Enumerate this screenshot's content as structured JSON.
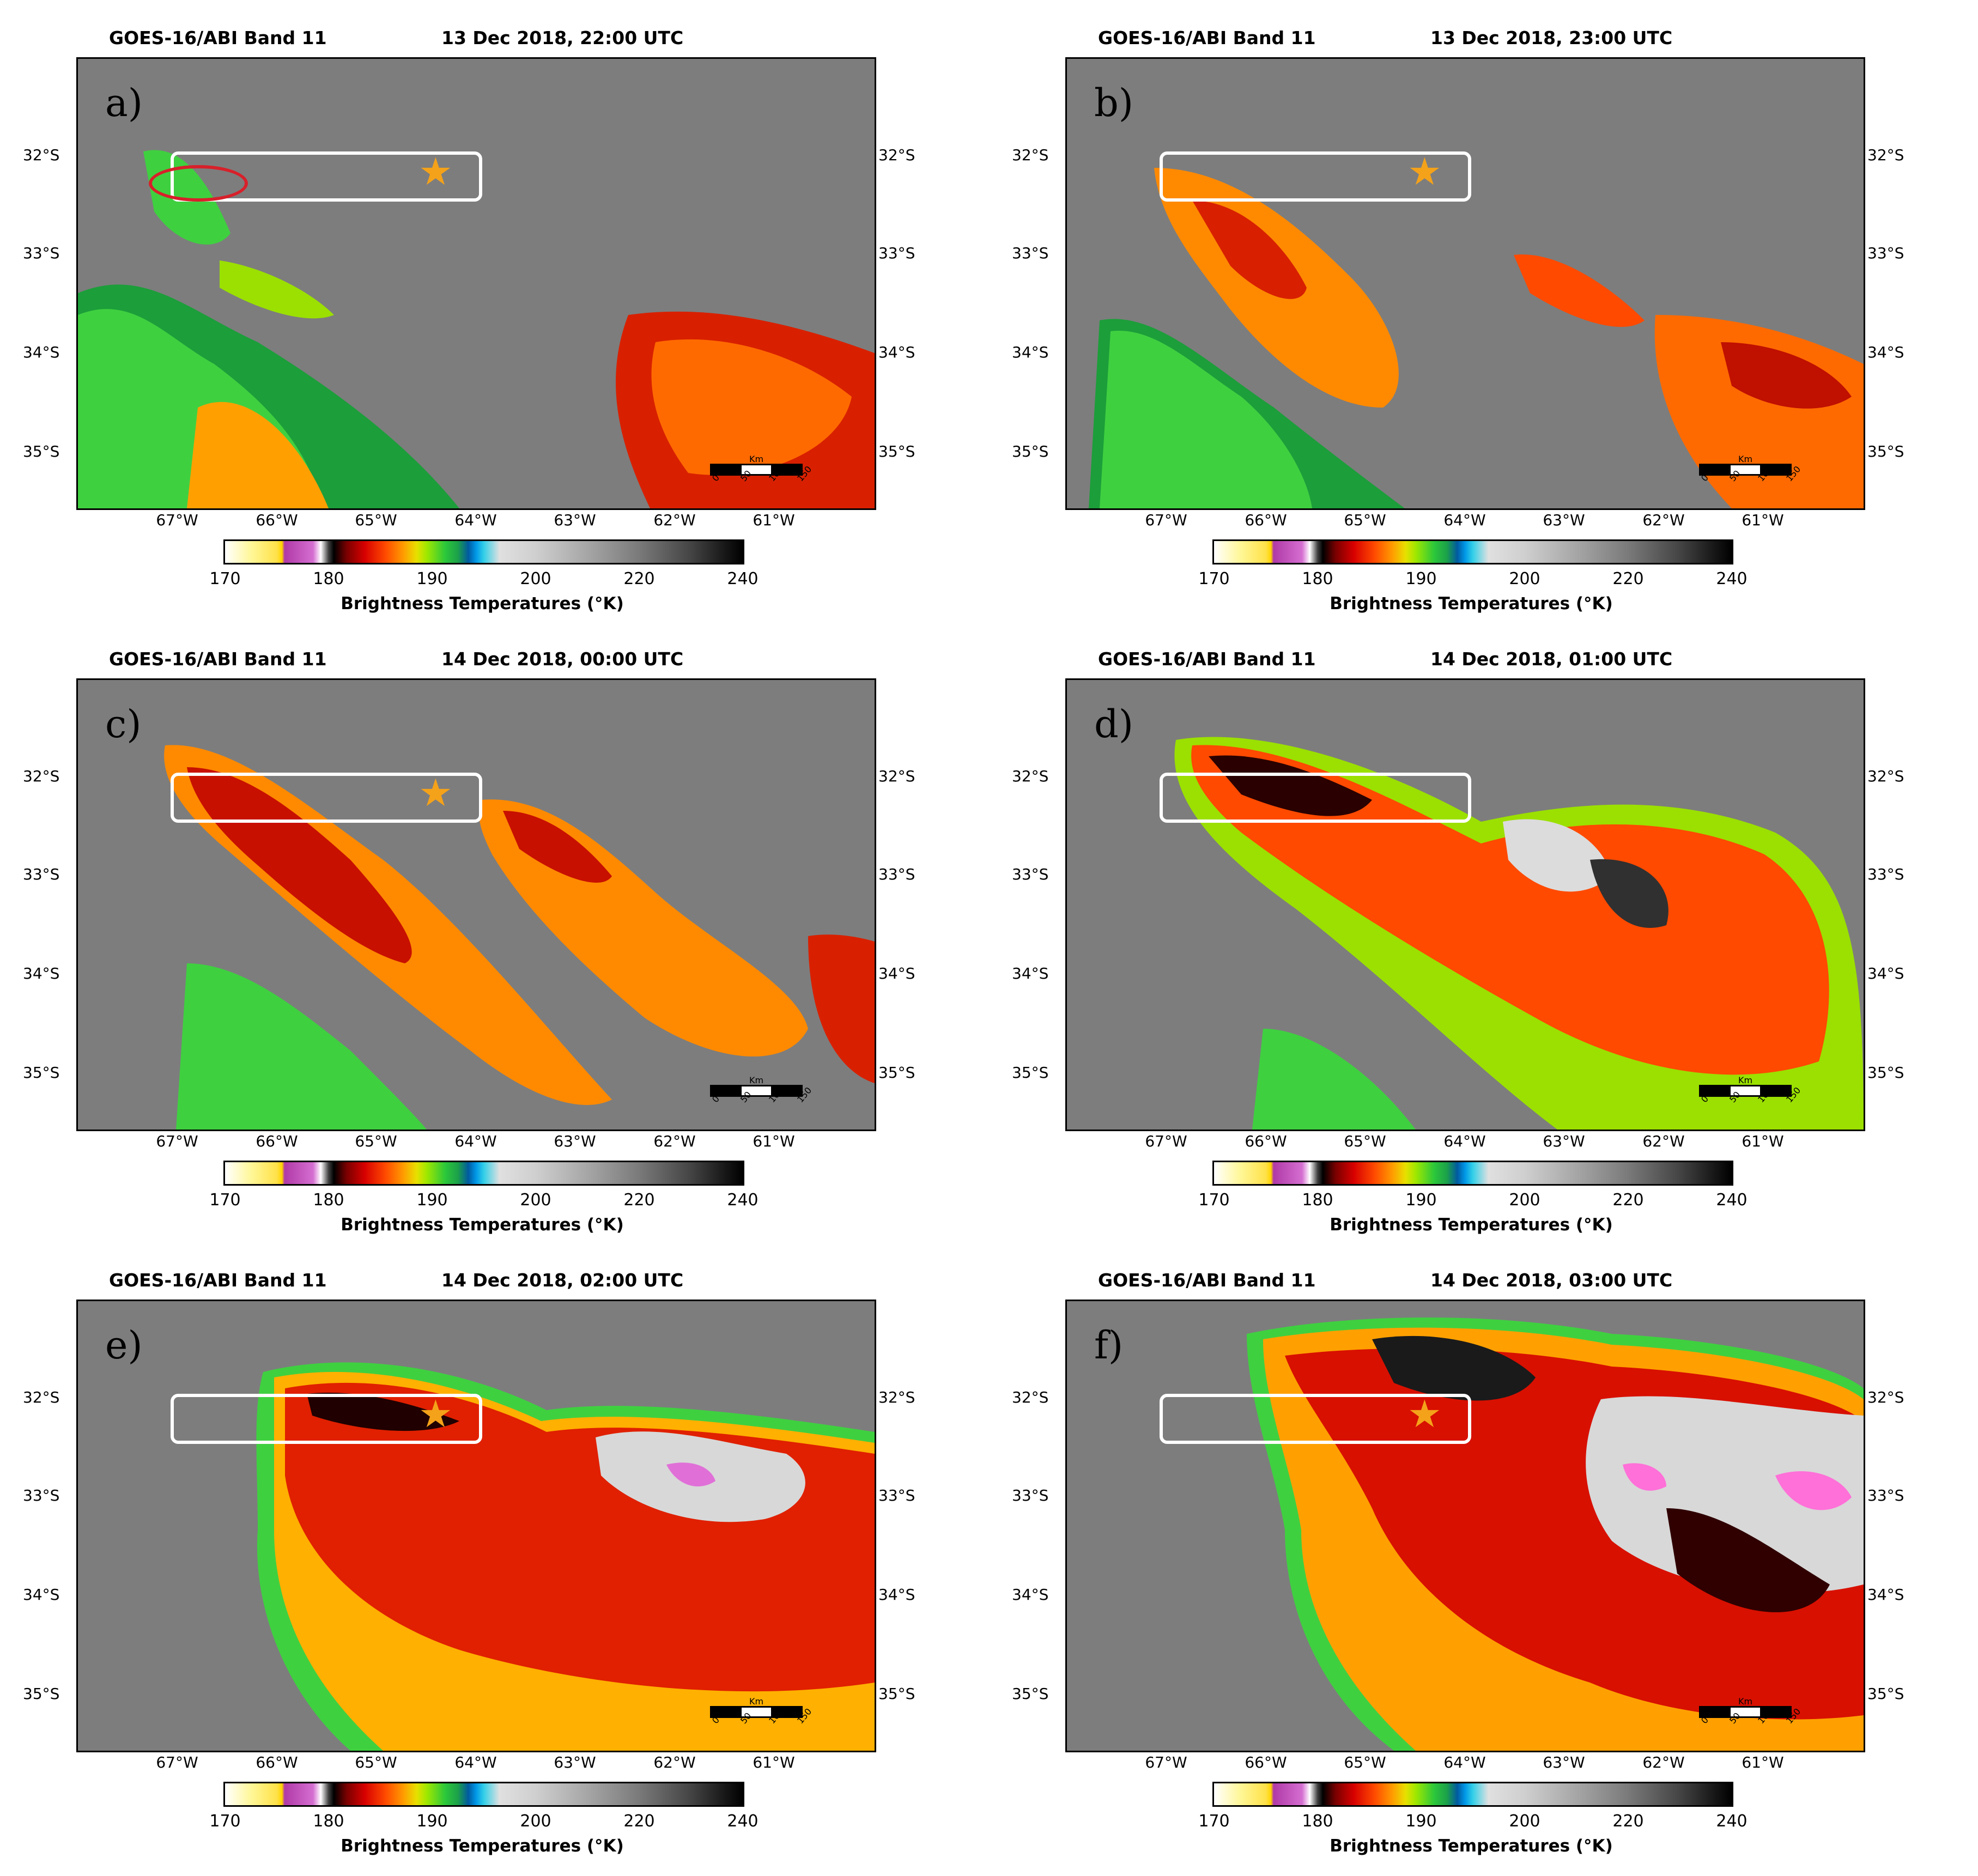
{
  "map": {
    "instrument": "GOES-16/ABI Band 11",
    "latitude_labels": [
      "32°S",
      "33°S",
      "34°S",
      "35°S"
    ],
    "longitude_labels": [
      "67°W",
      "66°W",
      "65°W",
      "64°W",
      "63°W",
      "62°W",
      "61°W"
    ],
    "colorbar": {
      "ticks": [
        "170",
        "180",
        "190",
        "200",
        "220",
        "240"
      ],
      "label": "Brightness Temperatures (°K)"
    },
    "scalebar": {
      "unit": "Km",
      "ticks": [
        "0",
        "50",
        "100",
        "150"
      ]
    }
  },
  "panels": [
    {
      "id": "a",
      "label": "a)",
      "title_date": "13 Dec 2018,  22:00 UTC",
      "has_star": true,
      "has_red_ellipse": true,
      "convective_coverage": 0.25
    },
    {
      "id": "b",
      "label": "b)",
      "title_date": "13 Dec 2018,  23:00 UTC",
      "has_star": true,
      "has_red_ellipse": false,
      "convective_coverage": 0.4
    },
    {
      "id": "c",
      "label": "c)",
      "title_date": "14 Dec 2018,  00:00 UTC",
      "has_star": true,
      "has_red_ellipse": false,
      "convective_coverage": 0.5
    },
    {
      "id": "d",
      "label": "d)",
      "title_date": "14 Dec 2018,  01:00 UTC",
      "has_star": false,
      "has_red_ellipse": false,
      "convective_coverage": 0.65
    },
    {
      "id": "e",
      "label": "e)",
      "title_date": "14 Dec 2018,  02:00 UTC",
      "has_star": true,
      "has_red_ellipse": false,
      "convective_coverage": 0.75
    },
    {
      "id": "f",
      "label": "f)",
      "title_date": "14 Dec 2018,  03:00 UTC",
      "has_star": true,
      "has_red_ellipse": false,
      "convective_coverage": 0.85
    }
  ]
}
